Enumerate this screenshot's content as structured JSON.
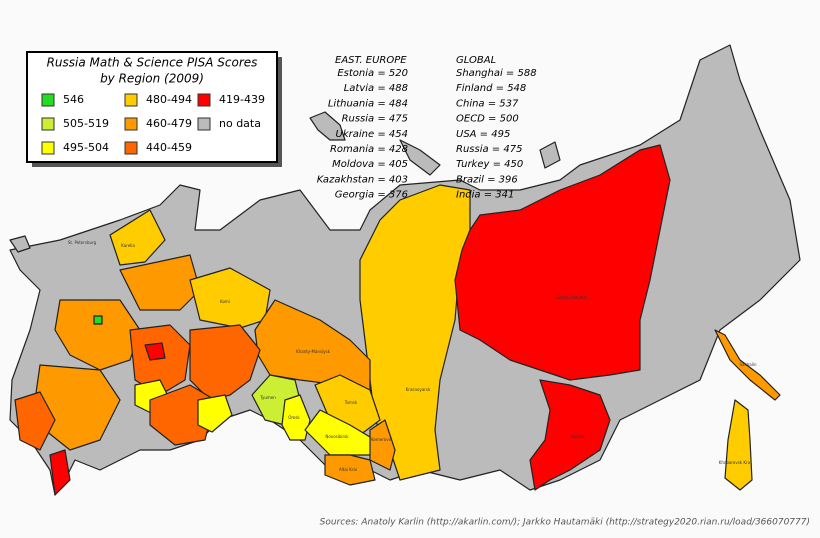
{
  "title": [
    "Russia Math & Science PISA Scores",
    "by Region (2009)"
  ],
  "legend": [
    {
      "label": "546",
      "color": "#22dd22"
    },
    {
      "label": "505-519",
      "color": "#ccee33"
    },
    {
      "label": "495-504",
      "color": "#ffff00"
    },
    {
      "label": "480-494",
      "color": "#ffcc00"
    },
    {
      "label": "460-479",
      "color": "#ff9900"
    },
    {
      "label": "440-459",
      "color": "#ff6600"
    },
    {
      "label": "419-439",
      "color": "#ff0000"
    },
    {
      "label": "no data",
      "color": "#bbbbbb"
    }
  ],
  "east_europe": {
    "heading": "EAST. EUROPE",
    "items": [
      "Estonia = 520",
      "Latvia = 488",
      "Lithuania = 484",
      "Russia = 475",
      "Ukraine = 454",
      "Romania = 428",
      "Moldova = 405",
      "Kazakhstan = 403",
      "Georgia = 376"
    ]
  },
  "global": {
    "heading": "GLOBAL",
    "items": [
      "Shanghai = 588",
      "Finland = 548",
      "China = 537",
      "OECD = 500",
      "USA = 495",
      "Russia = 475",
      "Turkey = 450",
      "Brazil = 396",
      "India = 341"
    ]
  },
  "region_labels": [
    "St. Petersburg",
    "Karelia",
    "Komi",
    "Khanty-Mansiysk",
    "Tyumen",
    "Tomsk",
    "Omsk",
    "Novosibirsk",
    "Kemerovo",
    "Altai Krai",
    "Krasnoyarsk",
    "Sakha (Yakutia)",
    "Irkutsk",
    "Khabarovsk Krai",
    "Sakhalin"
  ],
  "source": "Sources: Anatoly Karlin (http://akarlin.com/); Jarkko Hautamäki (http://strategy2020.rian.ru/load/366070777)"
}
